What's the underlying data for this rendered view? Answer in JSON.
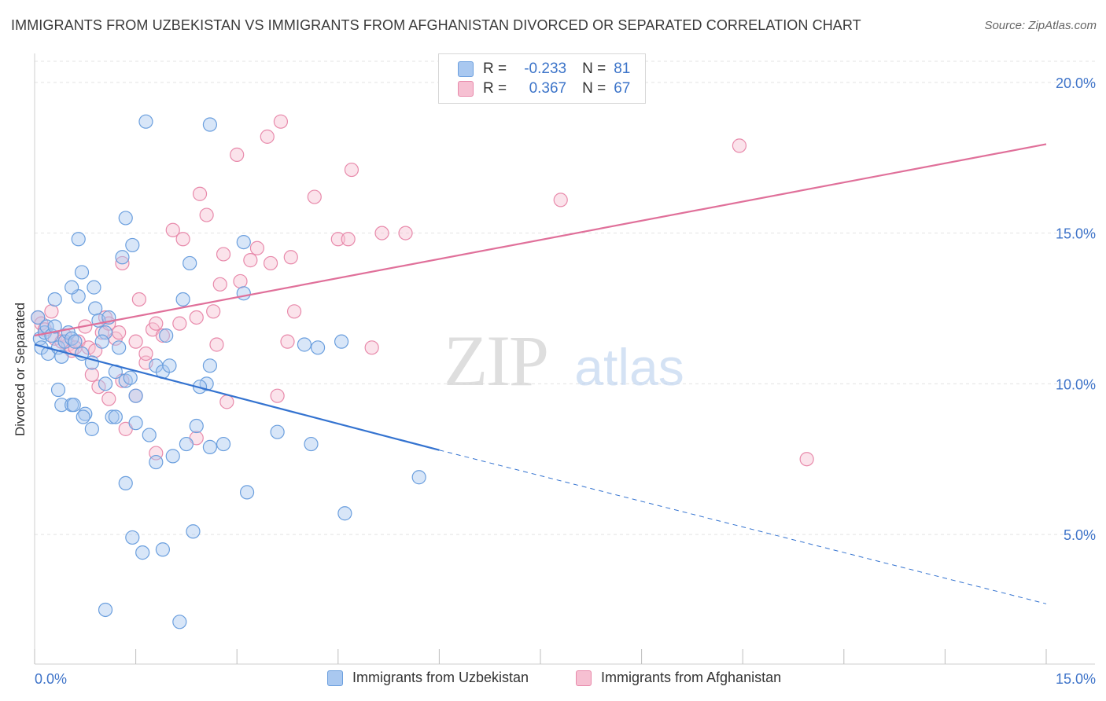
{
  "title": "IMMIGRANTS FROM UZBEKISTAN VS IMMIGRANTS FROM AFGHANISTAN DIVORCED OR SEPARATED CORRELATION CHART",
  "source": "Source: ZipAtlas.com",
  "watermark": {
    "zip": "ZIP",
    "atlas": "atlas"
  },
  "legend": {
    "rows": [
      {
        "r_label": "R =",
        "r_value": "-0.233",
        "n_label": "N =",
        "n_value": "81"
      },
      {
        "r_label": "R =",
        "r_value": "0.367",
        "n_label": "N =",
        "n_value": "67"
      }
    ]
  },
  "bottom_legend": {
    "series1": "Immigrants from Uzbekistan",
    "series2": "Immigrants from Afghanistan"
  },
  "colors": {
    "uzbekistan_fill": "#a9c8f0",
    "uzbekistan_stroke": "#6b9fde",
    "uzbekistan_line": "#3473d0",
    "afghanistan_fill": "#f6c0d2",
    "afghanistan_stroke": "#e88aab",
    "afghanistan_line": "#e0709a",
    "tick_label": "#3f74c9",
    "grid": "#e3e3e3"
  },
  "chart_data": {
    "type": "scatter",
    "title": "IMMIGRANTS FROM UZBEKISTAN VS IMMIGRANTS FROM AFGHANISTAN DIVORCED OR SEPARATED CORRELATION CHART",
    "xlabel": "",
    "ylabel": "Divorced or Separated",
    "xlim": [
      0,
      15
    ],
    "ylim": [
      0.7,
      20.7
    ],
    "x_tick_labels": [
      "0.0%",
      "15.0%"
    ],
    "y_ticks": [
      5,
      10,
      15,
      20
    ],
    "y_tick_labels": [
      "5.0%",
      "10.0%",
      "15.0%",
      "20.0%"
    ],
    "grid": true,
    "legend_position": "top-center",
    "series": [
      {
        "name": "Immigrants from Uzbekistan",
        "r": -0.233,
        "n": 81,
        "trend": {
          "x0": 0,
          "y0": 11.3,
          "x1": 6.0,
          "y1": 7.8,
          "dashed_to_x": 15,
          "dashed_to_y": 2.7
        },
        "points": [
          [
            0.05,
            12.2
          ],
          [
            0.08,
            11.5
          ],
          [
            0.1,
            11.2
          ],
          [
            0.15,
            11.7
          ],
          [
            0.18,
            11.9
          ],
          [
            0.2,
            11.0
          ],
          [
            0.25,
            11.6
          ],
          [
            0.3,
            11.9
          ],
          [
            0.35,
            11.2
          ],
          [
            0.4,
            10.9
          ],
          [
            0.45,
            11.4
          ],
          [
            0.5,
            11.7
          ],
          [
            0.55,
            11.5
          ],
          [
            0.6,
            11.4
          ],
          [
            0.7,
            11.0
          ],
          [
            0.3,
            12.8
          ],
          [
            0.65,
            12.9
          ],
          [
            0.9,
            12.5
          ],
          [
            0.95,
            12.1
          ],
          [
            1.1,
            12.2
          ],
          [
            1.05,
            11.7
          ],
          [
            1.0,
            11.4
          ],
          [
            0.55,
            13.2
          ],
          [
            0.7,
            13.7
          ],
          [
            0.88,
            13.2
          ],
          [
            1.3,
            14.2
          ],
          [
            1.45,
            14.6
          ],
          [
            0.65,
            14.8
          ],
          [
            1.35,
            15.5
          ],
          [
            1.65,
            18.7
          ],
          [
            2.6,
            18.6
          ],
          [
            2.3,
            14.0
          ],
          [
            3.1,
            14.7
          ],
          [
            2.2,
            12.8
          ],
          [
            3.1,
            13.0
          ],
          [
            2.6,
            10.6
          ],
          [
            0.85,
            10.7
          ],
          [
            1.05,
            10.0
          ],
          [
            1.25,
            11.2
          ],
          [
            1.2,
            10.4
          ],
          [
            1.35,
            10.1
          ],
          [
            1.5,
            9.6
          ],
          [
            1.8,
            10.6
          ],
          [
            1.9,
            10.4
          ],
          [
            2.0,
            10.6
          ],
          [
            2.55,
            10.0
          ],
          [
            2.45,
            9.9
          ],
          [
            0.35,
            9.8
          ],
          [
            0.4,
            9.3
          ],
          [
            0.55,
            9.3
          ],
          [
            0.75,
            9.0
          ],
          [
            0.72,
            8.9
          ],
          [
            1.15,
            8.9
          ],
          [
            1.2,
            8.9
          ],
          [
            1.5,
            8.7
          ],
          [
            0.85,
            8.5
          ],
          [
            1.7,
            8.3
          ],
          [
            2.25,
            8.0
          ],
          [
            2.4,
            8.6
          ],
          [
            2.8,
            8.0
          ],
          [
            2.6,
            7.9
          ],
          [
            2.05,
            7.6
          ],
          [
            1.8,
            7.4
          ],
          [
            3.6,
            8.4
          ],
          [
            4.1,
            8.0
          ],
          [
            5.7,
            6.9
          ],
          [
            1.35,
            6.7
          ],
          [
            3.15,
            6.4
          ],
          [
            4.6,
            5.7
          ],
          [
            2.35,
            5.1
          ],
          [
            1.45,
            4.9
          ],
          [
            1.6,
            4.4
          ],
          [
            1.9,
            4.5
          ],
          [
            1.05,
            2.5
          ],
          [
            2.15,
            2.1
          ],
          [
            4.0,
            11.3
          ],
          [
            4.2,
            11.2
          ],
          [
            4.55,
            11.4
          ],
          [
            1.95,
            11.6
          ],
          [
            0.58,
            9.3
          ],
          [
            1.42,
            10.2
          ]
        ]
      },
      {
        "name": "Immigrants from Afghanistan",
        "r": 0.367,
        "n": 67,
        "trend": {
          "x0": 0,
          "y0": 11.6,
          "x1": 15,
          "y1": 17.95
        },
        "points": [
          [
            0.05,
            12.2
          ],
          [
            0.1,
            12.0
          ],
          [
            0.15,
            11.8
          ],
          [
            0.25,
            12.4
          ],
          [
            0.3,
            11.5
          ],
          [
            0.45,
            11.6
          ],
          [
            0.5,
            11.3
          ],
          [
            0.55,
            11.1
          ],
          [
            0.65,
            11.4
          ],
          [
            0.75,
            11.9
          ],
          [
            0.8,
            11.2
          ],
          [
            0.9,
            11.1
          ],
          [
            1.0,
            11.7
          ],
          [
            1.05,
            12.2
          ],
          [
            1.1,
            12.0
          ],
          [
            1.2,
            11.5
          ],
          [
            1.3,
            14.0
          ],
          [
            1.5,
            11.4
          ],
          [
            1.55,
            12.8
          ],
          [
            1.65,
            10.7
          ],
          [
            1.75,
            11.8
          ],
          [
            1.8,
            12.0
          ],
          [
            1.9,
            11.6
          ],
          [
            2.05,
            15.1
          ],
          [
            2.15,
            12.0
          ],
          [
            2.2,
            14.8
          ],
          [
            2.4,
            12.2
          ],
          [
            2.45,
            16.3
          ],
          [
            2.55,
            15.6
          ],
          [
            2.65,
            12.4
          ],
          [
            2.8,
            14.3
          ],
          [
            2.75,
            13.3
          ],
          [
            3.0,
            17.6
          ],
          [
            3.05,
            13.4
          ],
          [
            3.2,
            14.1
          ],
          [
            3.3,
            14.5
          ],
          [
            3.45,
            18.2
          ],
          [
            3.5,
            14.0
          ],
          [
            3.65,
            18.7
          ],
          [
            3.8,
            14.2
          ],
          [
            3.85,
            12.4
          ],
          [
            4.15,
            16.2
          ],
          [
            4.5,
            14.8
          ],
          [
            4.65,
            14.8
          ],
          [
            4.7,
            17.1
          ],
          [
            5.15,
            15.0
          ],
          [
            5.5,
            15.0
          ],
          [
            0.85,
            10.3
          ],
          [
            0.95,
            9.9
          ],
          [
            1.1,
            9.5
          ],
          [
            1.3,
            10.1
          ],
          [
            1.5,
            9.6
          ],
          [
            1.35,
            8.5
          ],
          [
            1.8,
            7.7
          ],
          [
            2.4,
            8.2
          ],
          [
            2.85,
            9.4
          ],
          [
            3.6,
            9.6
          ],
          [
            3.75,
            11.4
          ],
          [
            5.0,
            11.2
          ],
          [
            7.8,
            16.1
          ],
          [
            10.45,
            17.9
          ],
          [
            11.45,
            7.5
          ],
          [
            0.6,
            11.2
          ],
          [
            1.25,
            11.7
          ],
          [
            2.7,
            11.3
          ],
          [
            1.65,
            11.0
          ],
          [
            0.4,
            11.4
          ]
        ]
      }
    ]
  }
}
